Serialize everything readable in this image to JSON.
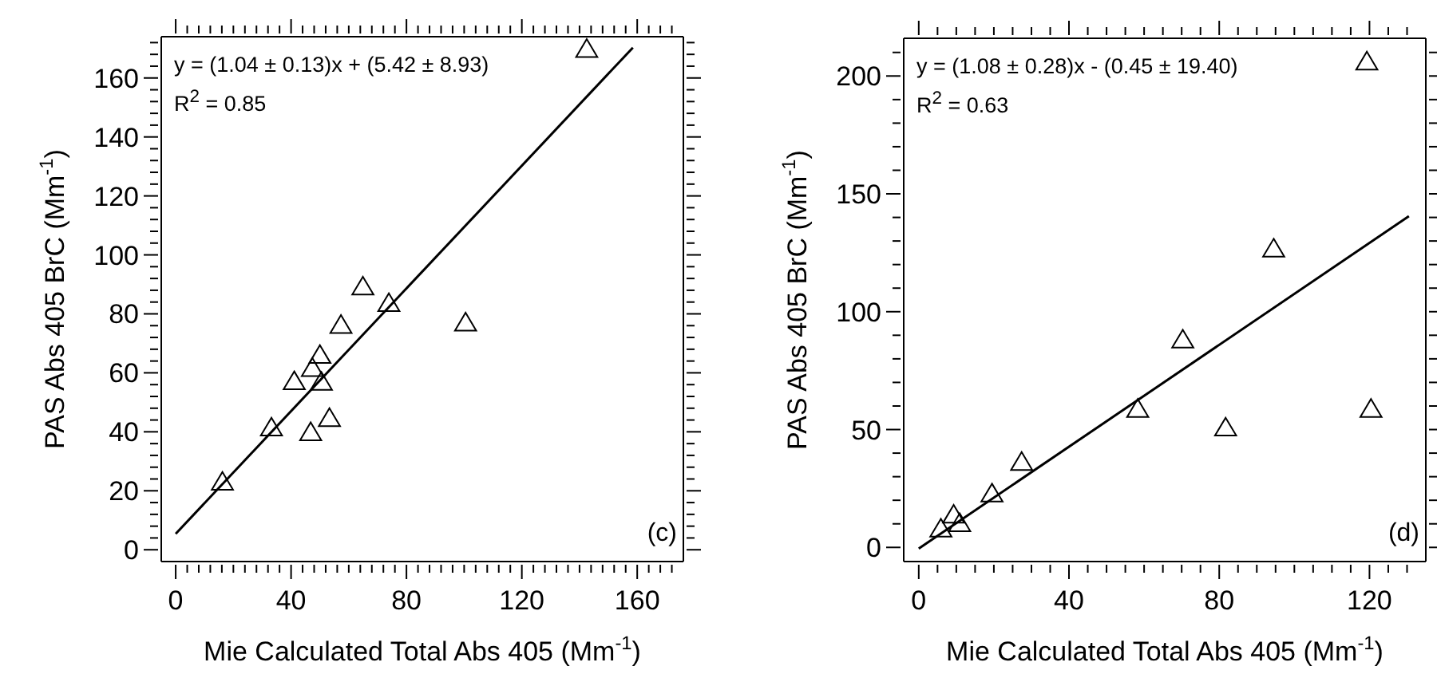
{
  "chart_data": [
    {
      "type": "scatter",
      "xlabel": "Mie Calculated Total Abs 405 (Mm$^{-1}$)",
      "ylabel": "PAS Abs 405 BrC (Mm$^{-1}$)",
      "annotations": [
        "y = (1.04 ± 0.13)x + (5.42 ± 8.93)",
        "R$^{2}$ = 0.85",
        "(c)"
      ],
      "xlim": [
        -5,
        176
      ],
      "ylim": [
        -4,
        174
      ],
      "xticks": [
        0,
        {
          "value": 4,
          "label": null
        },
        {
          "value": 8,
          "label": null
        },
        {
          "value": 12,
          "label": null
        },
        {
          "value": 16,
          "label": null
        },
        {
          "value": 20,
          "label": null
        },
        {
          "value": 24,
          "label": null
        },
        {
          "value": 28,
          "label": null
        },
        {
          "value": 32,
          "label": null
        },
        {
          "value": 36,
          "label": null
        },
        40,
        {
          "value": 44,
          "label": null
        },
        {
          "value": 48,
          "label": null
        },
        {
          "value": 52,
          "label": null
        },
        {
          "value": 56,
          "label": null
        },
        {
          "value": 60,
          "label": null
        },
        {
          "value": 64,
          "label": null
        },
        {
          "value": 68,
          "label": null
        },
        {
          "value": 72,
          "label": null
        },
        {
          "value": 76,
          "label": null
        },
        80,
        {
          "value": 84,
          "label": null
        },
        {
          "value": 88,
          "label": null
        },
        {
          "value": 92,
          "label": null
        },
        {
          "value": 96,
          "label": null
        },
        {
          "value": 100,
          "label": null
        },
        {
          "value": 104,
          "label": null
        },
        {
          "value": 108,
          "label": null
        },
        {
          "value": 112,
          "label": null
        },
        {
          "value": 116,
          "label": null
        },
        120,
        {
          "value": 124,
          "label": null
        },
        {
          "value": 128,
          "label": null
        },
        {
          "value": 132,
          "label": null
        },
        {
          "value": 136,
          "label": null
        },
        {
          "value": 140,
          "label": null
        },
        {
          "value": 144,
          "label": null
        },
        {
          "value": 148,
          "label": null
        },
        {
          "value": 152,
          "label": null
        },
        {
          "value": 156,
          "label": null
        },
        160,
        {
          "value": 164,
          "label": null
        },
        {
          "value": 168,
          "label": null
        },
        {
          "value": 172,
          "label": null
        }
      ],
      "yticks": [
        0,
        {
          "value": 4,
          "label": null
        },
        {
          "value": 8,
          "label": null
        },
        {
          "value": 12,
          "label": null
        },
        {
          "value": 16,
          "label": null
        },
        20,
        {
          "value": 24,
          "label": null
        },
        {
          "value": 28,
          "label": null
        },
        {
          "value": 32,
          "label": null
        },
        {
          "value": 36,
          "label": null
        },
        40,
        {
          "value": 44,
          "label": null
        },
        {
          "value": 48,
          "label": null
        },
        {
          "value": 52,
          "label": null
        },
        {
          "value": 56,
          "label": null
        },
        60,
        {
          "value": 64,
          "label": null
        },
        {
          "value": 68,
          "label": null
        },
        {
          "value": 72,
          "label": null
        },
        {
          "value": 76,
          "label": null
        },
        80,
        {
          "value": 84,
          "label": null
        },
        {
          "value": 88,
          "label": null
        },
        {
          "value": 92,
          "label": null
        },
        {
          "value": 96,
          "label": null
        },
        100,
        {
          "value": 104,
          "label": null
        },
        {
          "value": 108,
          "label": null
        },
        {
          "value": 112,
          "label": null
        },
        {
          "value": 116,
          "label": null
        },
        120,
        {
          "value": 124,
          "label": null
        },
        {
          "value": 128,
          "label": null
        },
        {
          "value": 132,
          "label": null
        },
        {
          "value": 136,
          "label": null
        },
        140,
        {
          "value": 144,
          "label": null
        },
        {
          "value": 148,
          "label": null
        },
        {
          "value": 152,
          "label": null
        },
        {
          "value": 156,
          "label": null
        },
        160,
        {
          "value": 164,
          "label": null
        },
        {
          "value": 168,
          "label": null
        },
        {
          "value": 172,
          "label": null
        }
      ],
      "series": [
        {
          "marker": "triangle",
          "color": "#000000",
          "x": [
            142.5,
            16.2,
            33.2,
            41.1,
            46.8,
            47.4,
            50.0,
            50.5,
            53.3,
            57.3,
            64.9,
            73.9,
            100.5
          ],
          "values": [
            169.4,
            22.6,
            41.0,
            56.7,
            39.4,
            61.2,
            65.6,
            56.5,
            44.2,
            75.8,
            88.8,
            83.2,
            76.6
          ]
        },
        {
          "type": "line",
          "color": "#000000",
          "line_style": "solid",
          "x": [
            0,
            158.5
          ],
          "values": [
            5.4,
            170.3
          ]
        }
      ]
    },
    {
      "type": "scatter",
      "xlabel": "Mie Calculated Total Abs 405 (Mm$^{-1}$)",
      "ylabel": "PAS Abs 405 BrC (Mm$^{-1}$)",
      "annotations": [
        "y = (1.08 ± 0.28)x - (0.45 ± 19.40)",
        "R$^{2}$ = 0.63",
        "(d)"
      ],
      "xlim": [
        -4,
        135
      ],
      "ylim": [
        -6,
        216
      ],
      "xticks": [
        0,
        {
          "value": 5,
          "label": null
        },
        {
          "value": 10,
          "label": null
        },
        {
          "value": 15,
          "label": null
        },
        {
          "value": 20,
          "label": null
        },
        {
          "value": 25,
          "label": null
        },
        {
          "value": 30,
          "label": null
        },
        {
          "value": 35,
          "label": null
        },
        40,
        {
          "value": 45,
          "label": null
        },
        {
          "value": 50,
          "label": null
        },
        {
          "value": 55,
          "label": null
        },
        {
          "value": 60,
          "label": null
        },
        {
          "value": 65,
          "label": null
        },
        {
          "value": 70,
          "label": null
        },
        {
          "value": 75,
          "label": null
        },
        80,
        {
          "value": 85,
          "label": null
        },
        {
          "value": 90,
          "label": null
        },
        {
          "value": 95,
          "label": null
        },
        {
          "value": 100,
          "label": null
        },
        {
          "value": 105,
          "label": null
        },
        {
          "value": 110,
          "label": null
        },
        {
          "value": 115,
          "label": null
        },
        120,
        {
          "value": 125,
          "label": null
        },
        {
          "value": 130,
          "label": null
        }
      ],
      "yticks": [
        0,
        {
          "value": 10,
          "label": null
        },
        {
          "value": 20,
          "label": null
        },
        {
          "value": 30,
          "label": null
        },
        {
          "value": 40,
          "label": null
        },
        50,
        {
          "value": 60,
          "label": null
        },
        {
          "value": 70,
          "label": null
        },
        {
          "value": 80,
          "label": null
        },
        {
          "value": 90,
          "label": null
        },
        100,
        {
          "value": 110,
          "label": null
        },
        {
          "value": 120,
          "label": null
        },
        {
          "value": 130,
          "label": null
        },
        {
          "value": 140,
          "label": null
        },
        150,
        {
          "value": 160,
          "label": null
        },
        {
          "value": 170,
          "label": null
        },
        {
          "value": 180,
          "label": null
        },
        {
          "value": 190,
          "label": null
        },
        200,
        {
          "value": 210,
          "label": null
        }
      ],
      "series": [
        {
          "marker": "triangle",
          "color": "#000000",
          "x": [
            5.9,
            9.3,
            10.9,
            19.5,
            27.4,
            58.3,
            70.3,
            81.7,
            94.5,
            119.3,
            120.4
          ],
          "values": [
            7.4,
            13.3,
            9.7,
            22.3,
            35.7,
            58.2,
            87.6,
            50.3,
            126.2,
            205.6,
            58.2
          ]
        },
        {
          "type": "line",
          "color": "#000000",
          "line_style": "solid",
          "x": [
            0,
            130.5
          ],
          "values": [
            -0.5,
            140.5
          ]
        }
      ]
    }
  ]
}
